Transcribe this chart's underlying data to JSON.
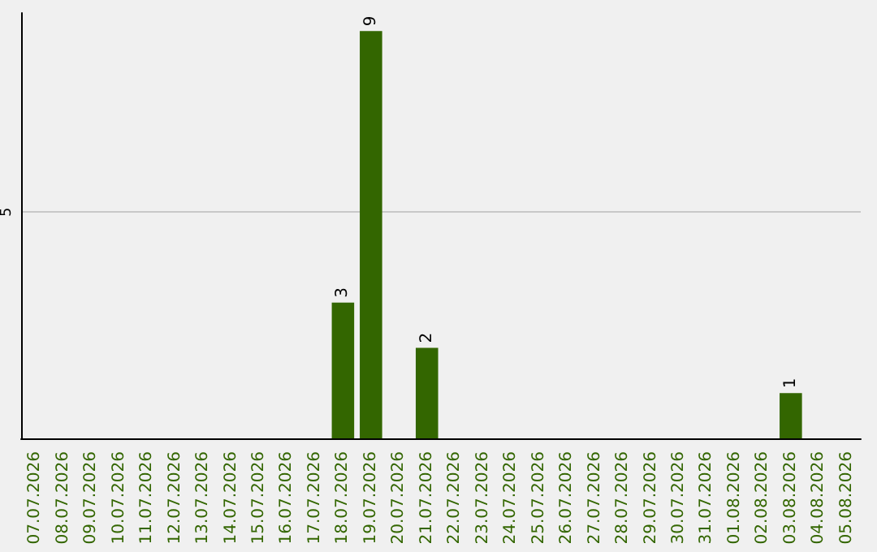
{
  "chart_data": {
    "type": "bar",
    "categories": [
      "07.07.2026",
      "08.07.2026",
      "09.07.2026",
      "10.07.2026",
      "11.07.2026",
      "12.07.2026",
      "13.07.2026",
      "14.07.2026",
      "15.07.2026",
      "16.07.2026",
      "17.07.2026",
      "18.07.2026",
      "19.07.2026",
      "20.07.2026",
      "21.07.2026",
      "22.07.2026",
      "23.07.2026",
      "24.07.2026",
      "25.07.2026",
      "26.07.2026",
      "27.07.2026",
      "28.07.2026",
      "29.07.2026",
      "30.07.2026",
      "31.07.2026",
      "01.08.2026",
      "02.08.2026",
      "03.08.2026",
      "04.08.2026",
      "05.08.2026"
    ],
    "values": [
      0,
      0,
      0,
      0,
      0,
      0,
      0,
      0,
      0,
      0,
      0,
      3,
      9,
      0,
      2,
      0,
      0,
      0,
      0,
      0,
      0,
      0,
      0,
      0,
      0,
      0,
      0,
      1,
      0,
      0
    ],
    "value_labels": [
      null,
      null,
      null,
      null,
      null,
      null,
      null,
      null,
      null,
      null,
      null,
      "3",
      "9",
      null,
      "2",
      null,
      null,
      null,
      null,
      null,
      null,
      null,
      null,
      null,
      null,
      null,
      null,
      "1",
      null,
      null
    ],
    "color": "#336600",
    "ylim": [
      0,
      9.4
    ],
    "yticks": [
      5
    ],
    "grid": "y"
  }
}
